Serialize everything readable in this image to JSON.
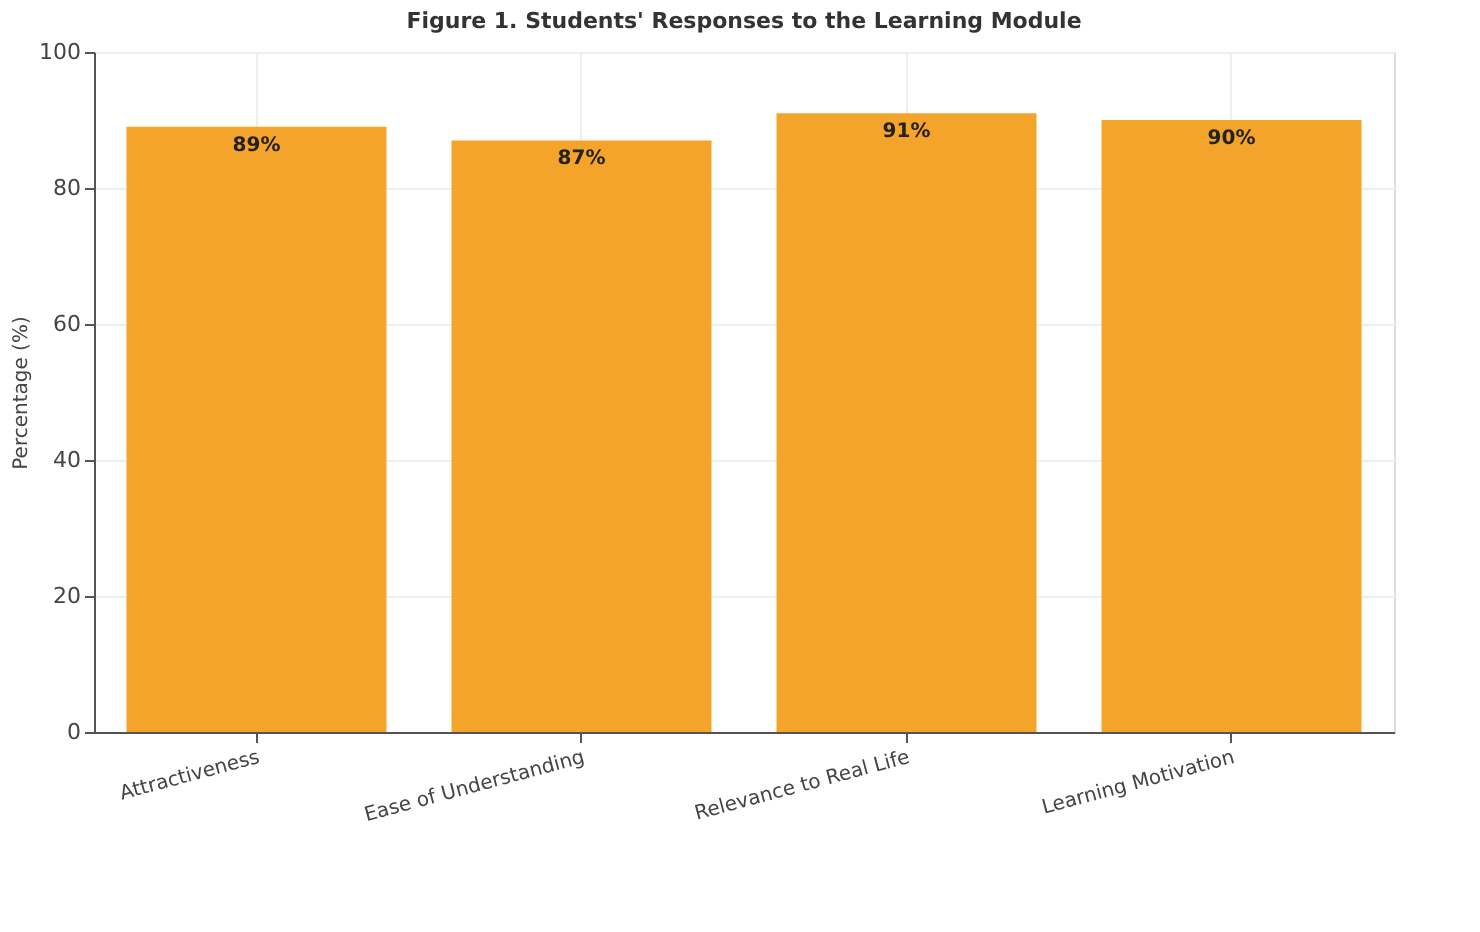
{
  "chart_data": {
    "type": "bar",
    "title": "Figure 1. Students' Responses to the Learning Module",
    "ylabel": "Percentage (%)",
    "categories": [
      "Attractiveness",
      "Ease of Understanding",
      "Relevance to Real Life",
      "Learning Motivation"
    ],
    "values": [
      89,
      87,
      91,
      90
    ],
    "value_labels": [
      "89%",
      "87%",
      "91%",
      "90%"
    ],
    "color": "#f4a42a",
    "ylim": [
      0,
      100
    ],
    "yticks": [
      0,
      20,
      40,
      60,
      80,
      100
    ],
    "grid": true
  }
}
